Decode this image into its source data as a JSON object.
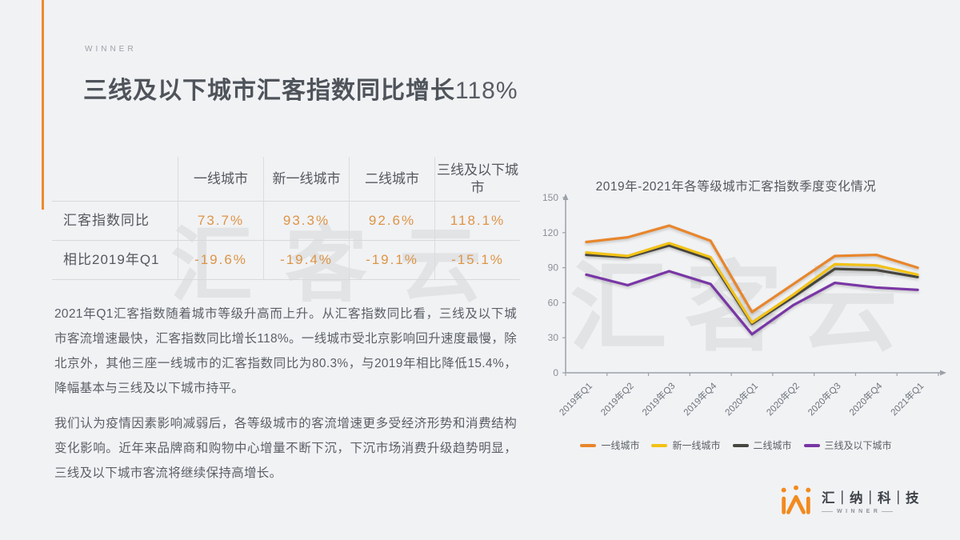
{
  "header": {
    "eyebrow": "WINNER",
    "title_main": "三线及以下城市汇客指数同比增长",
    "title_highlight": "118%"
  },
  "watermark": {
    "text": "汇客云"
  },
  "table": {
    "col_headers": [
      "一线城市",
      "新一线城市",
      "二线城市",
      "三线及以下城市"
    ],
    "rows": [
      {
        "label": "汇客指数同比",
        "values": [
          "73.7%",
          "93.3%",
          "92.6%",
          "118.1%"
        ]
      },
      {
        "label": "相比2019年Q1",
        "values": [
          "-19.6%",
          "-19.4%",
          "-19.1%",
          "-15.1%"
        ]
      }
    ]
  },
  "body": {
    "paragraph1": "2021年Q1汇客指数随着城市等级升高而上升。从汇客指数同比看，三线及以下城市客流增速最快，汇客指数同比增长118%。一线城市受北京影响回升速度最慢，除北京外，其他三座一线城市的汇客指数同比为80.3%，与2019年相比降低15.4%，降幅基本与三线及以下城市持平。",
    "paragraph2": "我们认为疫情因素影响减弱后，各等级城市的客流增速更多受经济形势和消费结构变化影响。近年来品牌商和购物中心增量不断下沉，下沉市场消费升级趋势明显，三线及以下城市客流将继续保持高增长。"
  },
  "chart_data": {
    "type": "line",
    "title": "2019年-2021年各等级城市汇客指数季度变化情况",
    "categories": [
      "2019年Q1",
      "2019年Q2",
      "2019年Q3",
      "2019年Q4",
      "2020年Q1",
      "2020年Q2",
      "2020年Q3",
      "2020年Q4",
      "2021年Q1"
    ],
    "series": [
      {
        "name": "一线城市",
        "color": "#E8862C",
        "values": [
          112,
          116,
          126,
          113,
          52,
          76,
          100,
          101,
          90
        ]
      },
      {
        "name": "新一线城市",
        "color": "#F2C216",
        "values": [
          103,
          100,
          111,
          99,
          43,
          67,
          93,
          92,
          84
        ]
      },
      {
        "name": "二线城市",
        "color": "#47463F",
        "values": [
          101,
          99,
          109,
          97,
          42,
          65,
          89,
          88,
          82
        ]
      },
      {
        "name": "三线及以下城市",
        "color": "#7936A5",
        "values": [
          84,
          75,
          87,
          76,
          33,
          58,
          77,
          73,
          71
        ]
      }
    ],
    "ylim": [
      0,
      150
    ],
    "ytick_step": 30,
    "grid": false,
    "legend_position": "bottom"
  },
  "logo": {
    "company": "汇｜纳｜科｜技",
    "sub": "WINNER"
  },
  "colors": {
    "accent_orange": "#EC8A2E",
    "table_value_orange": "#DD9445",
    "background": "#f1f2f4",
    "axis_gray": "#9ba1a8"
  }
}
